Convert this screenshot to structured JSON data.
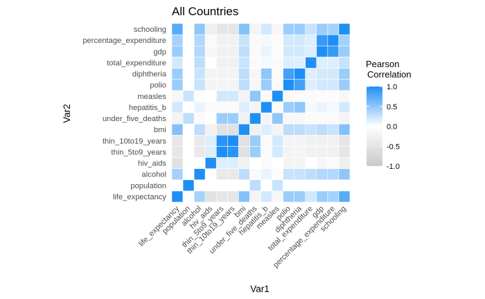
{
  "chart_data": {
    "type": "heatmap",
    "title": "All Countries",
    "xlabel": "Var1",
    "ylabel": "Var2",
    "variables": [
      "life_expectancy",
      "population",
      "alcohol",
      "hiv_aids",
      "thin_5to9_years",
      "thin_10to19_years",
      "bmi",
      "under_five_deaths",
      "hepatitis_b",
      "measles",
      "polio",
      "diphtheria",
      "total_expenditure",
      "gdp",
      "percentage_expenditure",
      "schooling"
    ],
    "matrix": [
      [
        1.0,
        0.0,
        0.4,
        -0.55,
        -0.45,
        -0.45,
        0.55,
        -0.2,
        0.2,
        -0.15,
        0.45,
        0.45,
        0.2,
        0.45,
        0.4,
        0.75
      ],
      [
        0.0,
        1.0,
        0.0,
        0.0,
        0.0,
        0.0,
        0.0,
        0.3,
        0.0,
        0.25,
        0.0,
        0.0,
        0.0,
        0.0,
        0.0,
        0.0
      ],
      [
        0.4,
        0.0,
        1.0,
        0.0,
        -0.4,
        -0.4,
        0.3,
        -0.1,
        0.1,
        -0.05,
        0.25,
        0.25,
        0.3,
        0.35,
        0.35,
        0.5
      ],
      [
        -0.55,
        0.0,
        0.0,
        1.0,
        0.15,
        0.15,
        -0.25,
        0.0,
        -0.1,
        0.0,
        -0.2,
        -0.2,
        0.0,
        -0.15,
        -0.1,
        -0.3
      ],
      [
        -0.45,
        0.0,
        -0.4,
        0.15,
        1.0,
        0.95,
        -0.55,
        0.45,
        -0.1,
        0.2,
        -0.2,
        -0.2,
        -0.25,
        -0.25,
        -0.25,
        -0.45
      ],
      [
        -0.45,
        0.0,
        -0.4,
        0.15,
        0.95,
        1.0,
        -0.55,
        0.45,
        -0.1,
        0.2,
        -0.2,
        -0.2,
        -0.25,
        -0.25,
        -0.25,
        -0.45
      ],
      [
        0.55,
        0.0,
        0.3,
        -0.25,
        -0.55,
        -0.55,
        1.0,
        -0.25,
        0.15,
        -0.2,
        0.3,
        0.3,
        0.25,
        0.3,
        0.25,
        0.55
      ],
      [
        -0.2,
        0.3,
        -0.1,
        0.0,
        0.45,
        0.45,
        -0.25,
        1.0,
        -0.2,
        0.5,
        -0.15,
        -0.15,
        -0.1,
        -0.1,
        -0.1,
        -0.2
      ],
      [
        0.2,
        0.0,
        0.1,
        -0.1,
        -0.1,
        -0.1,
        0.15,
        -0.2,
        1.0,
        -0.1,
        0.45,
        0.5,
        0.05,
        0.1,
        0.05,
        0.2
      ],
      [
        -0.15,
        0.25,
        -0.05,
        0.0,
        0.2,
        0.2,
        -0.2,
        0.5,
        -0.1,
        1.0,
        -0.1,
        -0.1,
        -0.1,
        -0.05,
        -0.05,
        -0.15
      ],
      [
        0.45,
        0.0,
        0.25,
        -0.2,
        -0.2,
        -0.2,
        0.3,
        -0.15,
        0.45,
        -0.1,
        1.0,
        0.85,
        0.15,
        0.2,
        0.2,
        0.45
      ],
      [
        0.45,
        0.0,
        0.25,
        -0.2,
        -0.2,
        -0.2,
        0.3,
        -0.15,
        0.5,
        -0.1,
        0.85,
        1.0,
        0.15,
        0.2,
        0.2,
        0.45
      ],
      [
        0.2,
        0.0,
        0.3,
        0.0,
        -0.25,
        -0.25,
        0.25,
        -0.1,
        0.05,
        -0.1,
        0.15,
        0.15,
        1.0,
        0.15,
        0.15,
        0.25
      ],
      [
        0.45,
        0.0,
        0.35,
        -0.15,
        -0.25,
        -0.25,
        0.3,
        -0.1,
        0.1,
        -0.05,
        0.2,
        0.2,
        0.15,
        1.0,
        0.9,
        0.45
      ],
      [
        0.4,
        0.0,
        0.35,
        -0.1,
        -0.25,
        -0.25,
        0.25,
        -0.1,
        0.05,
        -0.05,
        0.2,
        0.2,
        0.15,
        0.9,
        1.0,
        0.4
      ],
      [
        0.75,
        0.0,
        0.5,
        -0.3,
        -0.45,
        -0.45,
        0.55,
        -0.2,
        0.2,
        -0.15,
        0.45,
        0.45,
        0.25,
        0.45,
        0.4,
        1.0
      ]
    ],
    "color_scale": {
      "low": "#c8c8c8",
      "mid": "#ffffff",
      "high": "#1f8ff5",
      "domain": [
        -1.0,
        0.0,
        1.0
      ]
    },
    "legend": {
      "title_line1": "Pearson",
      "title_line2": "Correlation",
      "ticks": [
        "1.0",
        "0.5",
        "0.0",
        "-0.5",
        "-1.0"
      ],
      "tick_values": [
        1.0,
        0.5,
        0.0,
        -0.5,
        -1.0
      ],
      "placement": "right"
    },
    "grid": false
  }
}
